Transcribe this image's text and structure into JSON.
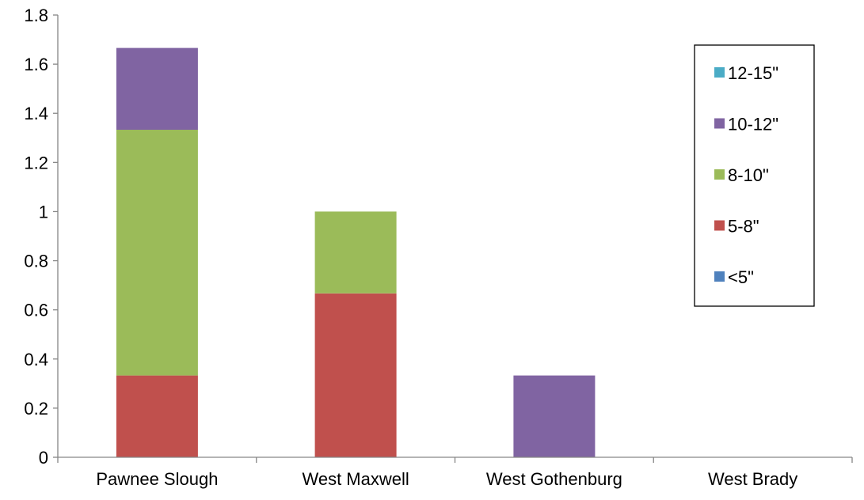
{
  "chart_data": {
    "type": "bar",
    "stacked": true,
    "categories": [
      "Pawnee Slough",
      "West Maxwell",
      "West Gothenburg",
      "West Brady"
    ],
    "series": [
      {
        "name": "<5\"",
        "color": "#4f81bd",
        "values": [
          0,
          0,
          0,
          0
        ]
      },
      {
        "name": "5-8\"",
        "color": "#c0504d",
        "values": [
          0.333,
          0.667,
          0,
          0
        ]
      },
      {
        "name": "8-10\"",
        "color": "#9bbb59",
        "values": [
          1.0,
          0.333,
          0,
          0
        ]
      },
      {
        "name": "10-12\"",
        "color": "#8064a2",
        "values": [
          0.333,
          0,
          0.333,
          0
        ]
      },
      {
        "name": "12-15\"",
        "color": "#4bacc6",
        "values": [
          0,
          0,
          0,
          0
        ]
      }
    ],
    "ylim": [
      0,
      1.8
    ],
    "yticks": [
      "0",
      "0.2",
      "0.4",
      "0.6",
      "0.8",
      "1",
      "1.2",
      "1.4",
      "1.6",
      "1.8"
    ],
    "grid": false,
    "legend": {
      "placement": "right",
      "order": [
        "12-15\"",
        "10-12\"",
        "8-10\"",
        "5-8\"",
        "<5\""
      ]
    }
  }
}
